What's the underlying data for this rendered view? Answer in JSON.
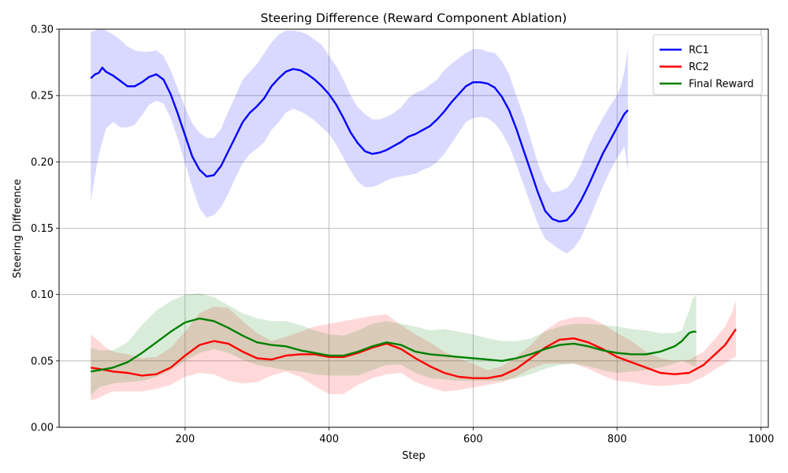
{
  "chart_data": {
    "type": "line",
    "title": "Steering Difference (Reward Component Ablation)",
    "xlabel": "Step",
    "ylabel": "Steering Difference",
    "xlim": [
      25,
      1010
    ],
    "ylim": [
      0.0,
      0.3
    ],
    "x_ticks": [
      200,
      400,
      600,
      800,
      1000
    ],
    "x_tick_labels": [
      "200",
      "400",
      "600",
      "800",
      "1000"
    ],
    "y_ticks": [
      0.0,
      0.05,
      0.1,
      0.15,
      0.2,
      0.25,
      0.3
    ],
    "y_tick_labels": [
      "0.00",
      "0.05",
      "0.10",
      "0.15",
      "0.20",
      "0.25",
      "0.30"
    ],
    "grid": true,
    "legend_position": "top-right",
    "series": [
      {
        "name": "RC1",
        "color": "#0000ff",
        "band_color": "#0000ff",
        "x": [
          69,
          75,
          80,
          85,
          90,
          100,
          110,
          120,
          130,
          140,
          150,
          160,
          170,
          180,
          190,
          200,
          210,
          220,
          230,
          240,
          250,
          260,
          270,
          280,
          290,
          300,
          310,
          320,
          330,
          340,
          350,
          360,
          370,
          380,
          390,
          400,
          410,
          420,
          430,
          440,
          450,
          460,
          470,
          480,
          490,
          500,
          510,
          520,
          530,
          540,
          550,
          560,
          570,
          580,
          590,
          600,
          610,
          620,
          630,
          640,
          650,
          660,
          670,
          680,
          690,
          700,
          710,
          720,
          730,
          740,
          750,
          760,
          770,
          780,
          790,
          800,
          805,
          810,
          815
        ],
        "y": [
          0.263,
          0.266,
          0.267,
          0.271,
          0.268,
          0.265,
          0.261,
          0.257,
          0.257,
          0.26,
          0.264,
          0.266,
          0.262,
          0.251,
          0.236,
          0.22,
          0.204,
          0.194,
          0.189,
          0.19,
          0.197,
          0.208,
          0.219,
          0.23,
          0.237,
          0.242,
          0.248,
          0.257,
          0.263,
          0.268,
          0.27,
          0.269,
          0.266,
          0.262,
          0.257,
          0.251,
          0.243,
          0.233,
          0.222,
          0.214,
          0.208,
          0.206,
          0.207,
          0.209,
          0.212,
          0.215,
          0.219,
          0.221,
          0.224,
          0.227,
          0.232,
          0.238,
          0.245,
          0.251,
          0.257,
          0.26,
          0.26,
          0.259,
          0.256,
          0.249,
          0.239,
          0.225,
          0.209,
          0.193,
          0.177,
          0.163,
          0.157,
          0.155,
          0.156,
          0.162,
          0.171,
          0.182,
          0.194,
          0.206,
          0.216,
          0.226,
          0.231,
          0.236,
          0.239
        ],
        "lower": [
          0.17,
          0.19,
          0.205,
          0.215,
          0.225,
          0.23,
          0.226,
          0.226,
          0.228,
          0.235,
          0.243,
          0.246,
          0.244,
          0.233,
          0.217,
          0.199,
          0.181,
          0.165,
          0.158,
          0.16,
          0.166,
          0.176,
          0.188,
          0.199,
          0.206,
          0.21,
          0.215,
          0.224,
          0.23,
          0.237,
          0.24,
          0.238,
          0.235,
          0.231,
          0.226,
          0.221,
          0.213,
          0.203,
          0.193,
          0.185,
          0.181,
          0.181,
          0.183,
          0.186,
          0.188,
          0.189,
          0.19,
          0.191,
          0.194,
          0.196,
          0.2,
          0.206,
          0.214,
          0.222,
          0.23,
          0.233,
          0.234,
          0.233,
          0.229,
          0.222,
          0.212,
          0.198,
          0.183,
          0.168,
          0.153,
          0.142,
          0.138,
          0.134,
          0.131,
          0.135,
          0.143,
          0.155,
          0.168,
          0.181,
          0.193,
          0.203,
          0.207,
          0.212,
          0.193
        ],
        "upper": [
          0.298,
          0.299,
          0.3,
          0.3,
          0.299,
          0.296,
          0.292,
          0.287,
          0.284,
          0.283,
          0.283,
          0.284,
          0.28,
          0.269,
          0.255,
          0.241,
          0.229,
          0.222,
          0.218,
          0.218,
          0.225,
          0.238,
          0.25,
          0.262,
          0.268,
          0.274,
          0.282,
          0.29,
          0.296,
          0.299,
          0.299,
          0.298,
          0.296,
          0.292,
          0.288,
          0.28,
          0.272,
          0.262,
          0.25,
          0.241,
          0.236,
          0.232,
          0.232,
          0.234,
          0.237,
          0.241,
          0.248,
          0.252,
          0.254,
          0.258,
          0.262,
          0.269,
          0.274,
          0.278,
          0.282,
          0.285,
          0.285,
          0.283,
          0.282,
          0.276,
          0.266,
          0.25,
          0.235,
          0.217,
          0.199,
          0.185,
          0.177,
          0.178,
          0.18,
          0.187,
          0.198,
          0.212,
          0.223,
          0.233,
          0.242,
          0.25,
          0.257,
          0.268,
          0.285
        ]
      },
      {
        "name": "RC2",
        "color": "#ff0000",
        "band_color": "#ff0000",
        "x": [
          69,
          80,
          90,
          100,
          120,
          140,
          160,
          180,
          200,
          220,
          240,
          260,
          280,
          300,
          320,
          340,
          360,
          380,
          400,
          420,
          440,
          460,
          480,
          500,
          520,
          540,
          560,
          580,
          600,
          620,
          640,
          660,
          680,
          700,
          720,
          740,
          760,
          780,
          800,
          820,
          840,
          860,
          880,
          900,
          920,
          940,
          950,
          960,
          965
        ],
        "y": [
          0.045,
          0.044,
          0.043,
          0.042,
          0.041,
          0.039,
          0.04,
          0.045,
          0.054,
          0.062,
          0.065,
          0.063,
          0.057,
          0.052,
          0.051,
          0.054,
          0.055,
          0.055,
          0.053,
          0.053,
          0.056,
          0.06,
          0.063,
          0.059,
          0.052,
          0.046,
          0.041,
          0.038,
          0.037,
          0.037,
          0.039,
          0.044,
          0.052,
          0.06,
          0.066,
          0.067,
          0.064,
          0.059,
          0.053,
          0.049,
          0.045,
          0.041,
          0.04,
          0.041,
          0.047,
          0.057,
          0.062,
          0.07,
          0.074
        ],
        "lower": [
          0.02,
          0.022,
          0.025,
          0.027,
          0.027,
          0.027,
          0.029,
          0.032,
          0.038,
          0.041,
          0.04,
          0.035,
          0.033,
          0.034,
          0.039,
          0.042,
          0.038,
          0.031,
          0.025,
          0.025,
          0.032,
          0.037,
          0.04,
          0.041,
          0.034,
          0.03,
          0.027,
          0.028,
          0.03,
          0.032,
          0.034,
          0.038,
          0.044,
          0.048,
          0.048,
          0.048,
          0.044,
          0.039,
          0.035,
          0.034,
          0.032,
          0.031,
          0.032,
          0.033,
          0.038,
          0.045,
          0.048,
          0.052,
          0.053
        ],
        "upper": [
          0.07,
          0.065,
          0.06,
          0.057,
          0.055,
          0.052,
          0.053,
          0.06,
          0.072,
          0.086,
          0.091,
          0.09,
          0.08,
          0.071,
          0.065,
          0.068,
          0.072,
          0.076,
          0.078,
          0.08,
          0.082,
          0.084,
          0.085,
          0.077,
          0.07,
          0.064,
          0.057,
          0.052,
          0.048,
          0.043,
          0.046,
          0.053,
          0.062,
          0.073,
          0.08,
          0.083,
          0.083,
          0.078,
          0.071,
          0.065,
          0.057,
          0.052,
          0.05,
          0.051,
          0.057,
          0.069,
          0.076,
          0.087,
          0.096
        ]
      },
      {
        "name": "Final Reward",
        "color": "#008000",
        "band_color": "#008000",
        "x": [
          69,
          80,
          100,
          120,
          140,
          160,
          180,
          200,
          220,
          240,
          260,
          280,
          300,
          320,
          340,
          360,
          380,
          400,
          420,
          440,
          460,
          480,
          500,
          520,
          540,
          560,
          580,
          600,
          620,
          640,
          660,
          680,
          700,
          720,
          740,
          760,
          780,
          800,
          820,
          840,
          860,
          880,
          890,
          900,
          905,
          910
        ],
        "y": [
          0.042,
          0.043,
          0.045,
          0.049,
          0.056,
          0.064,
          0.072,
          0.079,
          0.082,
          0.08,
          0.075,
          0.069,
          0.064,
          0.062,
          0.061,
          0.058,
          0.056,
          0.054,
          0.054,
          0.057,
          0.061,
          0.064,
          0.062,
          0.057,
          0.055,
          0.054,
          0.053,
          0.052,
          0.051,
          0.05,
          0.052,
          0.055,
          0.059,
          0.062,
          0.063,
          0.061,
          0.058,
          0.056,
          0.055,
          0.055,
          0.057,
          0.061,
          0.065,
          0.071,
          0.072,
          0.072
        ],
        "lower": [
          0.024,
          0.03,
          0.033,
          0.034,
          0.035,
          0.038,
          0.043,
          0.05,
          0.056,
          0.059,
          0.056,
          0.051,
          0.047,
          0.045,
          0.043,
          0.042,
          0.04,
          0.039,
          0.039,
          0.039,
          0.043,
          0.047,
          0.047,
          0.041,
          0.037,
          0.036,
          0.035,
          0.035,
          0.035,
          0.035,
          0.037,
          0.04,
          0.044,
          0.047,
          0.048,
          0.046,
          0.043,
          0.041,
          0.042,
          0.043,
          0.045,
          0.048,
          0.05,
          0.048,
          0.046,
          0.046
        ],
        "upper": [
          0.06,
          0.058,
          0.058,
          0.064,
          0.077,
          0.088,
          0.095,
          0.1,
          0.101,
          0.098,
          0.092,
          0.086,
          0.082,
          0.08,
          0.08,
          0.077,
          0.073,
          0.07,
          0.069,
          0.073,
          0.078,
          0.08,
          0.078,
          0.076,
          0.073,
          0.074,
          0.072,
          0.07,
          0.067,
          0.065,
          0.065,
          0.067,
          0.072,
          0.076,
          0.078,
          0.078,
          0.077,
          0.076,
          0.074,
          0.073,
          0.071,
          0.071,
          0.073,
          0.088,
          0.097,
          0.1
        ]
      }
    ]
  }
}
